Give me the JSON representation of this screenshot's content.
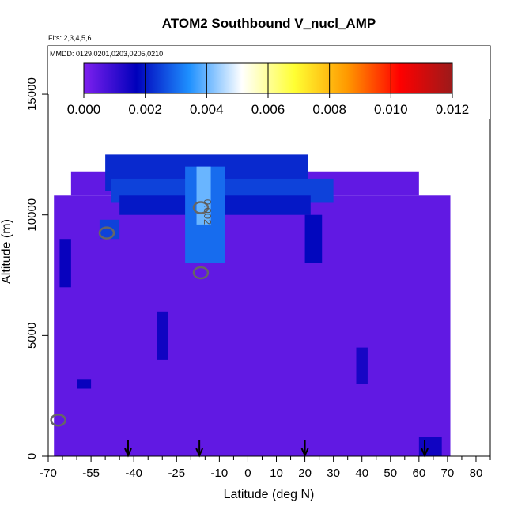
{
  "chart_data": {
    "type": "heatmap",
    "title": "ATOM2 Southbound V_nucl_AMP",
    "subtitle_flights": "Flts: 2,3,4,5,6",
    "subtitle_dates": "MMDD: 0129,0201,0203,0205,0210",
    "xlabel": "Latitude (deg N)",
    "ylabel": "Altitude (m)",
    "xlim": [
      -70,
      85
    ],
    "ylim": [
      0,
      17000
    ],
    "x_ticks": [
      -70,
      -55,
      -40,
      -25,
      -10,
      0,
      10,
      20,
      30,
      40,
      50,
      60,
      70,
      80
    ],
    "x_minor_ticks": [
      -65,
      -60,
      -50,
      -45,
      -35,
      -30,
      -20,
      -15,
      -5,
      5,
      15,
      25,
      35,
      45,
      55,
      65,
      75,
      85
    ],
    "y_ticks": [
      0,
      5000,
      10000,
      15000
    ],
    "colorbar": {
      "min": 0.0,
      "max": 0.012,
      "ticks": [
        "0.000",
        "0.002",
        "0.004",
        "0.006",
        "0.008",
        "0.010",
        "0.012"
      ],
      "tick_values": [
        0.0,
        0.002,
        0.004,
        0.006,
        0.008,
        0.01,
        0.012
      ],
      "colors": [
        "#7f20ef",
        "#0000bb",
        "#1e90ff",
        "#ffffff",
        "#ffff33",
        "#ff9900",
        "#ff0000",
        "#9b1a1a"
      ]
    },
    "background_value": 0.0004,
    "coverage": {
      "lat_range": [
        -68,
        71
      ],
      "alt_range": [
        0,
        12500
      ]
    },
    "contour_label": "0.002",
    "flight_marker_latitudes": [
      -42,
      -17,
      20,
      62
    ],
    "enhanced_regions": [
      {
        "lat": [
          -50,
          21
        ],
        "alt": [
          11000,
          12500
        ],
        "value": 0.0022
      },
      {
        "lat": [
          -48,
          30
        ],
        "alt": [
          10500,
          11500
        ],
        "value": 0.0025
      },
      {
        "lat": [
          -45,
          22
        ],
        "alt": [
          10000,
          10800
        ],
        "value": 0.002
      },
      {
        "lat": [
          -22,
          -8
        ],
        "alt": [
          8000,
          12000
        ],
        "value": 0.003
      },
      {
        "lat": [
          -18,
          -13
        ],
        "alt": [
          9600,
          12000
        ],
        "value": 0.004
      },
      {
        "lat": [
          -52,
          -45
        ],
        "alt": [
          9000,
          9800
        ],
        "value": 0.0025
      },
      {
        "lat": [
          20,
          26
        ],
        "alt": [
          8000,
          10000
        ],
        "value": 0.0018
      },
      {
        "lat": [
          60,
          68
        ],
        "alt": [
          0,
          800
        ],
        "value": 0.0015
      },
      {
        "lat": [
          -66,
          -62
        ],
        "alt": [
          7000,
          9000
        ],
        "value": 0.0016
      },
      {
        "lat": [
          -32,
          -28
        ],
        "alt": [
          4000,
          6000
        ],
        "value": 0.0015
      },
      {
        "lat": [
          38,
          42
        ],
        "alt": [
          3000,
          4500
        ],
        "value": 0.0014
      },
      {
        "lat": [
          -60,
          -55
        ],
        "alt": [
          2800,
          3200
        ],
        "value": 0.0016
      }
    ],
    "contours": [
      {
        "lat": -49.5,
        "alt": 9250,
        "value": 0.002
      },
      {
        "lat": -16.5,
        "alt": 10300,
        "value": 0.002
      },
      {
        "lat": -16.5,
        "alt": 7600,
        "value": 0.002
      },
      {
        "lat": -66.5,
        "alt": 1500,
        "value": 0.002
      }
    ]
  }
}
